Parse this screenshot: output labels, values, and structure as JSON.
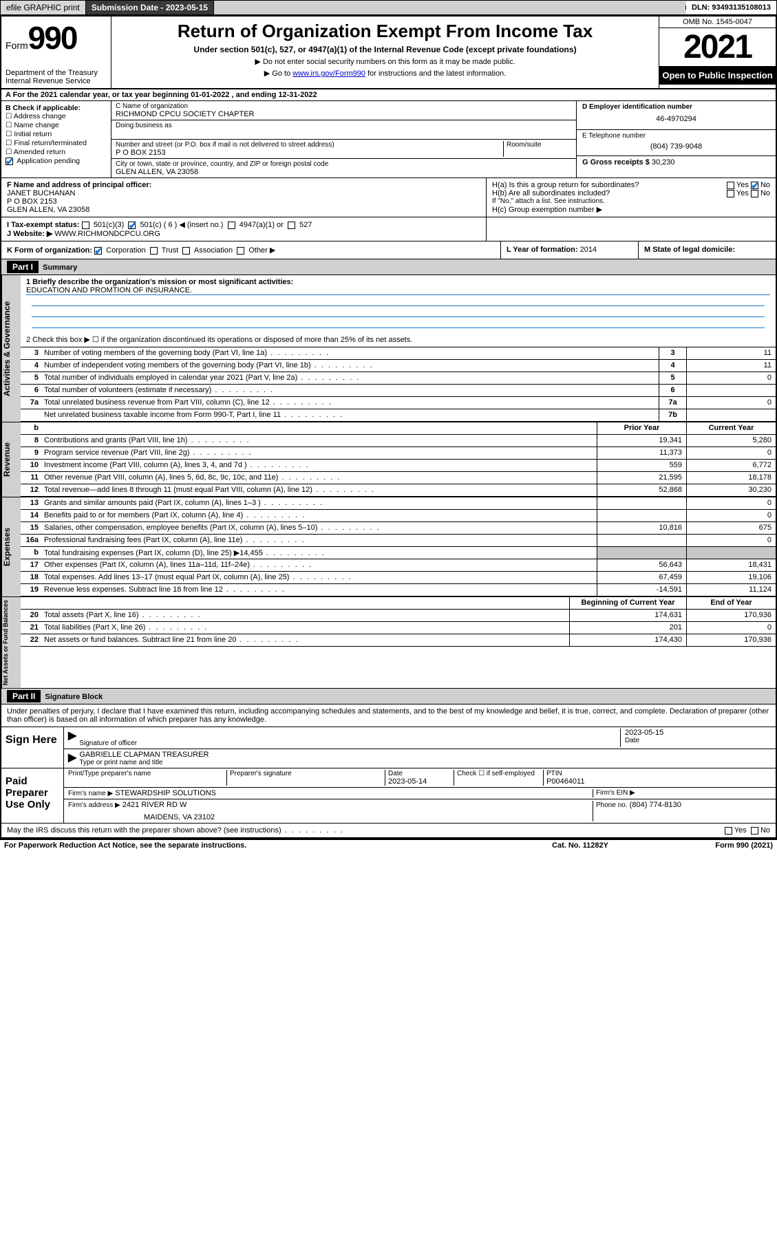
{
  "topbar": {
    "efile": "efile GRAPHIC print",
    "submission_label": "Submission Date - 2023-05-15",
    "dln": "DLN: 93493135108013"
  },
  "header": {
    "form_label": "Form",
    "form_num": "990",
    "dept": "Department of the Treasury",
    "irs": "Internal Revenue Service",
    "title": "Return of Organization Exempt From Income Tax",
    "sub": "Under section 501(c), 527, or 4947(a)(1) of the Internal Revenue Code (except private foundations)",
    "note1": "▶ Do not enter social security numbers on this form as it may be made public.",
    "note2_pre": "▶ Go to ",
    "note2_link": "www.irs.gov/Form990",
    "note2_post": " for instructions and the latest information.",
    "omb": "OMB No. 1545-0047",
    "year": "2021",
    "inspect": "Open to Public Inspection"
  },
  "line_a": "A For the 2021 calendar year, or tax year beginning 01-01-2022    , and ending 12-31-2022",
  "col_b": {
    "label": "B Check if applicable:",
    "opts": [
      "☐ Address change",
      "☐ Name change",
      "☐ Initial return",
      "☐ Final return/terminated",
      "☐ Amended return",
      "   Application pending"
    ]
  },
  "col_c": {
    "name_label": "C Name of organization",
    "name": "RICHMOND CPCU SOCIETY CHAPTER",
    "dba_label": "Doing business as",
    "addr_label": "Number and street (or P.O. box if mail is not delivered to street address)",
    "room_label": "Room/suite",
    "addr": "P O BOX 2153",
    "city_label": "City or town, state or province, country, and ZIP or foreign postal code",
    "city": "GLEN ALLEN, VA  23058"
  },
  "col_d": {
    "label": "D Employer identification number",
    "val": "46-4970294"
  },
  "col_e": {
    "tel_label": "E Telephone number",
    "tel": "(804) 739-9048",
    "gross_label": "G Gross receipts $",
    "gross": "30,230"
  },
  "row_f": {
    "label": "F  Name and address of principal officer:",
    "name": "JANET BUCHANAN",
    "addr1": "P O BOX 2153",
    "addr2": "GLEN ALLEN, VA  23058"
  },
  "row_h": {
    "ha": "H(a)  Is this a group return for subordinates?",
    "ha_yes": "Yes",
    "ha_no": "No",
    "hb": "H(b)  Are all subordinates included?",
    "hb_yes": "Yes",
    "hb_no": "No",
    "hb_note": "If \"No,\" attach a list. See instructions.",
    "hc": "H(c)  Group exemption number ▶"
  },
  "row_i": {
    "label": "I     Tax-exempt status:",
    "c3": "501(c)(3)",
    "c": "501(c) ( 6 ) ◀ (insert no.)",
    "a1": "4947(a)(1) or",
    "s527": "527"
  },
  "row_j": {
    "label": "J     Website: ▶",
    "val": "WWW.RICHMONDCPCU.ORG"
  },
  "row_k": {
    "label": "K Form of organization:",
    "corp": "Corporation",
    "trust": "Trust",
    "assoc": "Association",
    "other": "Other ▶"
  },
  "row_l": {
    "label": "L Year of formation:",
    "val": "2014"
  },
  "row_m": {
    "label": "M State of legal domicile:",
    "val": ""
  },
  "partI": {
    "hdr": "Part I",
    "title": "Summary",
    "l1_label": "1  Briefly describe the organization's mission or most significant activities:",
    "l1_val": "EDUCATION AND PROMTION OF INSURANCE.",
    "l2": "2    Check this box ▶ ☐  if the organization discontinued its operations or disposed of more than 25% of its net assets.",
    "sections": {
      "gov": "Activities & Governance",
      "rev": "Revenue",
      "exp": "Expenses",
      "net": "Net Assets or Fund Balances"
    },
    "col_hdr_prior": "Prior Year",
    "col_hdr_curr": "Current Year",
    "col_hdr_beg": "Beginning of Current Year",
    "col_hdr_end": "End of Year",
    "lines_gov": [
      {
        "n": "3",
        "d": "Number of voting members of the governing body (Part VI, line 1a)",
        "box": "3",
        "v": "11"
      },
      {
        "n": "4",
        "d": "Number of independent voting members of the governing body (Part VI, line 1b)",
        "box": "4",
        "v": "11"
      },
      {
        "n": "5",
        "d": "Total number of individuals employed in calendar year 2021 (Part V, line 2a)",
        "box": "5",
        "v": "0"
      },
      {
        "n": "6",
        "d": "Total number of volunteers (estimate if necessary)",
        "box": "6",
        "v": ""
      },
      {
        "n": "7a",
        "d": "Total unrelated business revenue from Part VIII, column (C), line 12",
        "box": "7a",
        "v": "0"
      },
      {
        "n": "",
        "d": "Net unrelated business taxable income from Form 990-T, Part I, line 11",
        "box": "7b",
        "v": ""
      }
    ],
    "lines_rev": [
      {
        "n": "8",
        "d": "Contributions and grants (Part VIII, line 1h)",
        "p": "19,341",
        "c": "5,280"
      },
      {
        "n": "9",
        "d": "Program service revenue (Part VIII, line 2g)",
        "p": "11,373",
        "c": "0"
      },
      {
        "n": "10",
        "d": "Investment income (Part VIII, column (A), lines 3, 4, and 7d )",
        "p": "559",
        "c": "6,772"
      },
      {
        "n": "11",
        "d": "Other revenue (Part VIII, column (A), lines 5, 6d, 8c, 9c, 10c, and 11e)",
        "p": "21,595",
        "c": "18,178"
      },
      {
        "n": "12",
        "d": "Total revenue—add lines 8 through 11 (must equal Part VIII, column (A), line 12)",
        "p": "52,868",
        "c": "30,230"
      }
    ],
    "lines_exp": [
      {
        "n": "13",
        "d": "Grants and similar amounts paid (Part IX, column (A), lines 1–3 )",
        "p": "",
        "c": "0"
      },
      {
        "n": "14",
        "d": "Benefits paid to or for members (Part IX, column (A), line 4)",
        "p": "",
        "c": "0"
      },
      {
        "n": "15",
        "d": "Salaries, other compensation, employee benefits (Part IX, column (A), lines 5–10)",
        "p": "10,816",
        "c": "675"
      },
      {
        "n": "16a",
        "d": "Professional fundraising fees (Part IX, column (A), line 11e)",
        "p": "",
        "c": "0"
      },
      {
        "n": "b",
        "d": "Total fundraising expenses (Part IX, column (D), line 25) ▶14,455",
        "p": "shade",
        "c": "shade"
      },
      {
        "n": "17",
        "d": "Other expenses (Part IX, column (A), lines 11a–11d, 11f–24e)",
        "p": "56,643",
        "c": "18,431"
      },
      {
        "n": "18",
        "d": "Total expenses. Add lines 13–17 (must equal Part IX, column (A), line 25)",
        "p": "67,459",
        "c": "19,106"
      },
      {
        "n": "19",
        "d": "Revenue less expenses. Subtract line 18 from line 12",
        "p": "-14,591",
        "c": "11,124"
      }
    ],
    "lines_net": [
      {
        "n": "20",
        "d": "Total assets (Part X, line 16)",
        "p": "174,631",
        "c": "170,936"
      },
      {
        "n": "21",
        "d": "Total liabilities (Part X, line 26)",
        "p": "201",
        "c": "0"
      },
      {
        "n": "22",
        "d": "Net assets or fund balances. Subtract line 21 from line 20",
        "p": "174,430",
        "c": "170,936"
      }
    ]
  },
  "partII": {
    "hdr": "Part II",
    "title": "Signature Block",
    "decl": "Under penalties of perjury, I declare that I have examined this return, including accompanying schedules and statements, and to the best of my knowledge and belief, it is true, correct, and complete. Declaration of preparer (other than officer) is based on all information of which preparer has any knowledge.",
    "sign_here": "Sign Here",
    "sig_officer": "Signature of officer",
    "sig_date": "2023-05-15",
    "date_label": "Date",
    "officer_name": "GABRIELLE CLAPMAN TREASURER",
    "officer_label": "Type or print name and title",
    "paid": "Paid Preparer Use Only",
    "prep_name_label": "Print/Type preparer's name",
    "prep_sig_label": "Preparer's signature",
    "prep_date_label": "Date",
    "prep_date": "2023-05-14",
    "check_self": "Check ☐ if self-employed",
    "ptin_label": "PTIN",
    "ptin": "P00464011",
    "firm_name_label": "Firm's name    ▶",
    "firm_name": "STEWARDSHIP SOLUTIONS",
    "firm_ein_label": "Firm's EIN ▶",
    "firm_addr_label": "Firm's address ▶",
    "firm_addr1": "2421 RIVER RD W",
    "firm_addr2": "MAIDENS, VA  23102",
    "phone_label": "Phone no.",
    "phone": "(804) 774-8130",
    "discuss": "May the IRS discuss this return with the preparer shown above? (see instructions)",
    "yes": "Yes",
    "no": "No"
  },
  "footer": {
    "pra": "For Paperwork Reduction Act Notice, see the separate instructions.",
    "cat": "Cat. No. 11282Y",
    "form": "Form 990 (2021)"
  }
}
